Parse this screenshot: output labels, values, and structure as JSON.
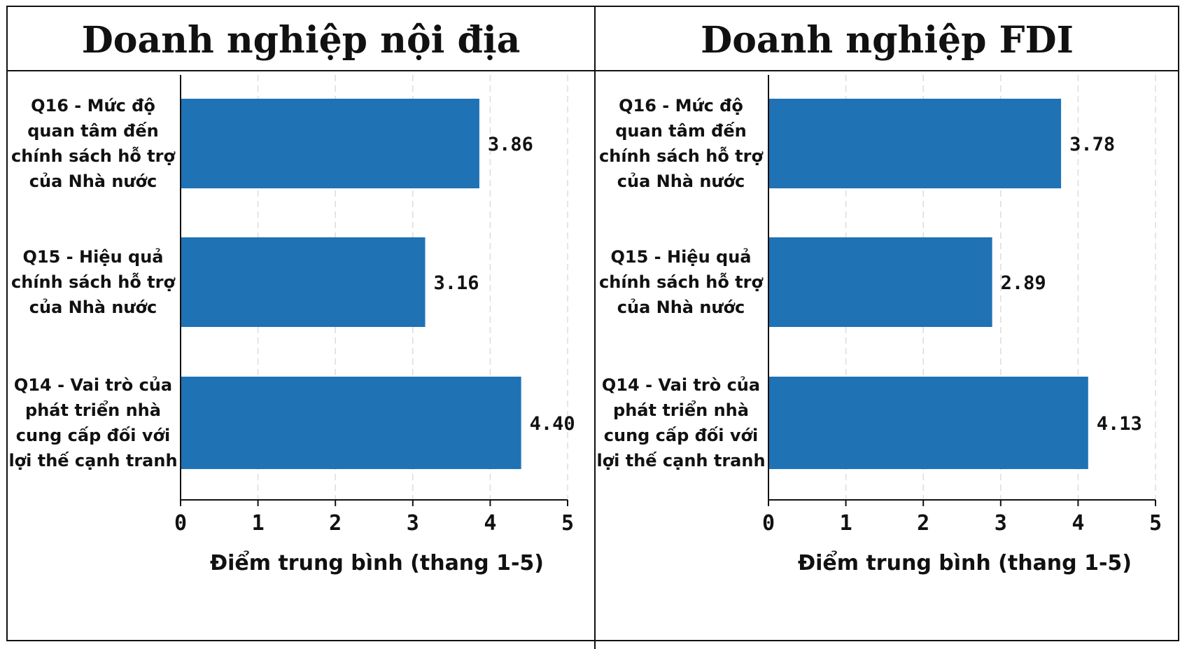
{
  "chart_data": [
    {
      "type": "bar",
      "orientation": "horizontal",
      "title": "Doanh nghiệp nội địa",
      "categories": [
        "Q16 - Mức độ quan tâm đến chính sách hỗ trợ của Nhà nước",
        "Q15 - Hiệu quả chính sách hỗ trợ của Nhà nước",
        "Q14 - Vai trò của phát triển nhà cung cấp đối với lợi thế cạnh tranh"
      ],
      "category_lines": [
        [
          "Q16 - Mức độ",
          "quan tâm đến",
          "chính sách hỗ trợ",
          "của Nhà nước"
        ],
        [
          "Q15 - Hiệu quả",
          "chính sách hỗ trợ",
          "của Nhà nước"
        ],
        [
          "Q14 - Vai trò của",
          "phát triển nhà",
          "cung cấp đối với",
          "lợi thế cạnh tranh"
        ]
      ],
      "values": [
        3.86,
        3.16,
        4.4
      ],
      "value_labels": [
        "3.86",
        "3.16",
        "4.40"
      ],
      "xlabel": "Điểm trung bình (thang 1-5)",
      "ylabel": "",
      "xlim": [
        0,
        5
      ],
      "ticks": [
        "0",
        "1",
        "2",
        "3",
        "4",
        "5"
      ],
      "grid": "vertical dashed",
      "bar_color": "#1f72b4"
    },
    {
      "type": "bar",
      "orientation": "horizontal",
      "title": "Doanh nghiệp FDI",
      "categories": [
        "Q16 - Mức độ quan tâm đến chính sách hỗ trợ của Nhà nước",
        "Q15 - Hiệu quả chính sách hỗ trợ của Nhà nước",
        "Q14 - Vai trò của phát triển nhà cung cấp đối với lợi thế cạnh tranh"
      ],
      "category_lines": [
        [
          "Q16 - Mức độ",
          "quan tâm đến",
          "chính sách hỗ trợ",
          "của Nhà nước"
        ],
        [
          "Q15 - Hiệu quả",
          "chính sách hỗ trợ",
          "của Nhà nước"
        ],
        [
          "Q14 - Vai trò của",
          "phát triển nhà",
          "cung cấp đối với",
          "lợi thế cạnh tranh"
        ]
      ],
      "values": [
        3.78,
        2.89,
        4.13
      ],
      "value_labels": [
        "3.78",
        "2.89",
        "4.13"
      ],
      "xlabel": "Điểm trung bình (thang 1-5)",
      "ylabel": "",
      "xlim": [
        0,
        5
      ],
      "ticks": [
        "0",
        "1",
        "2",
        "3",
        "4",
        "5"
      ],
      "grid": "vertical dashed",
      "bar_color": "#1f72b4"
    }
  ]
}
